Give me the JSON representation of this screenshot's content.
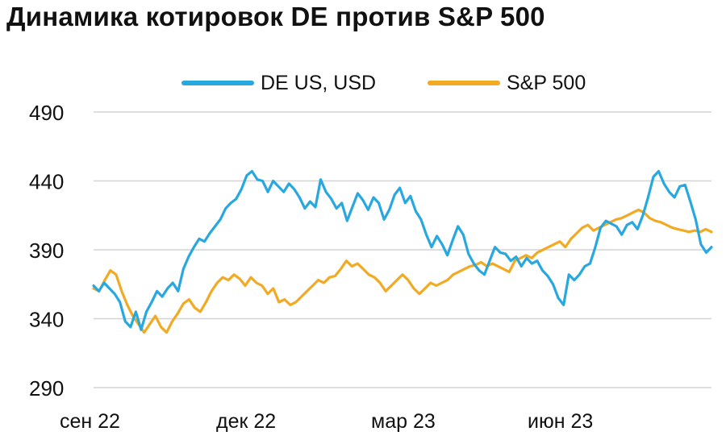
{
  "title": "Динамика котировок DE против S&P 500",
  "chart_data": {
    "type": "line",
    "title": "Динамика котировок DE против S&P 500",
    "xlabel": "",
    "ylabel": "",
    "ylim": [
      290,
      490
    ],
    "yticks": [
      490,
      440,
      390,
      340,
      290
    ],
    "xticks": [
      "сен 22",
      "дек 22",
      "мар 23",
      "июн 23"
    ],
    "grid": "horizontal",
    "legend_position": "top",
    "series": [
      {
        "name": "DE US, USD",
        "color": "#29a8df",
        "values": [
          364,
          360,
          366,
          362,
          358,
          352,
          338,
          334,
          345,
          332,
          345,
          352,
          360,
          356,
          362,
          366,
          360,
          376,
          385,
          392,
          398,
          396,
          402,
          407,
          412,
          420,
          424,
          427,
          434,
          444,
          447,
          441,
          440,
          432,
          440,
          436,
          432,
          438,
          434,
          428,
          420,
          425,
          421,
          441,
          432,
          427,
          420,
          424,
          411,
          421,
          431,
          426,
          419,
          428,
          424,
          412,
          419,
          430,
          435,
          424,
          429,
          418,
          412,
          401,
          392,
          400,
          394,
          386,
          397,
          407,
          401,
          387,
          380,
          375,
          372,
          382,
          392,
          388,
          387,
          382,
          385,
          378,
          384,
          380,
          382,
          375,
          371,
          365,
          355,
          350,
          372,
          368,
          372,
          378,
          380,
          392,
          406,
          411,
          409,
          407,
          401,
          408,
          410,
          405,
          415,
          428,
          443,
          447,
          438,
          432,
          428,
          436,
          437,
          425,
          412,
          394,
          388,
          392
        ],
        "note": "approximate values read from the plotted line"
      },
      {
        "name": "S&P 500",
        "color": "#f0aa24",
        "values": [
          362,
          360,
          368,
          375,
          372,
          360,
          350,
          342,
          336,
          330,
          336,
          342,
          334,
          330,
          338,
          344,
          351,
          354,
          348,
          345,
          352,
          360,
          366,
          370,
          368,
          372,
          369,
          364,
          370,
          366,
          364,
          358,
          362,
          352,
          354,
          350,
          352,
          356,
          360,
          364,
          368,
          366,
          370,
          371,
          376,
          382,
          378,
          380,
          376,
          372,
          370,
          366,
          360,
          364,
          368,
          372,
          368,
          362,
          358,
          362,
          366,
          364,
          366,
          368,
          372,
          374,
          376,
          378,
          379,
          381,
          378,
          380,
          378,
          376,
          374,
          382,
          384,
          386,
          384,
          388,
          390,
          392,
          394,
          396,
          392,
          398,
          402,
          406,
          408,
          404,
          406,
          408,
          410,
          412,
          413,
          415,
          417,
          419,
          417,
          413,
          411,
          410,
          408,
          406,
          405,
          404,
          403,
          404,
          403,
          405,
          403
        ],
        "note": "approximate values read from the plotted line"
      }
    ]
  },
  "colors": {
    "de": "#29a8df",
    "spx": "#f0aa24",
    "grid": "#d4d4d4",
    "text": "#111111"
  }
}
